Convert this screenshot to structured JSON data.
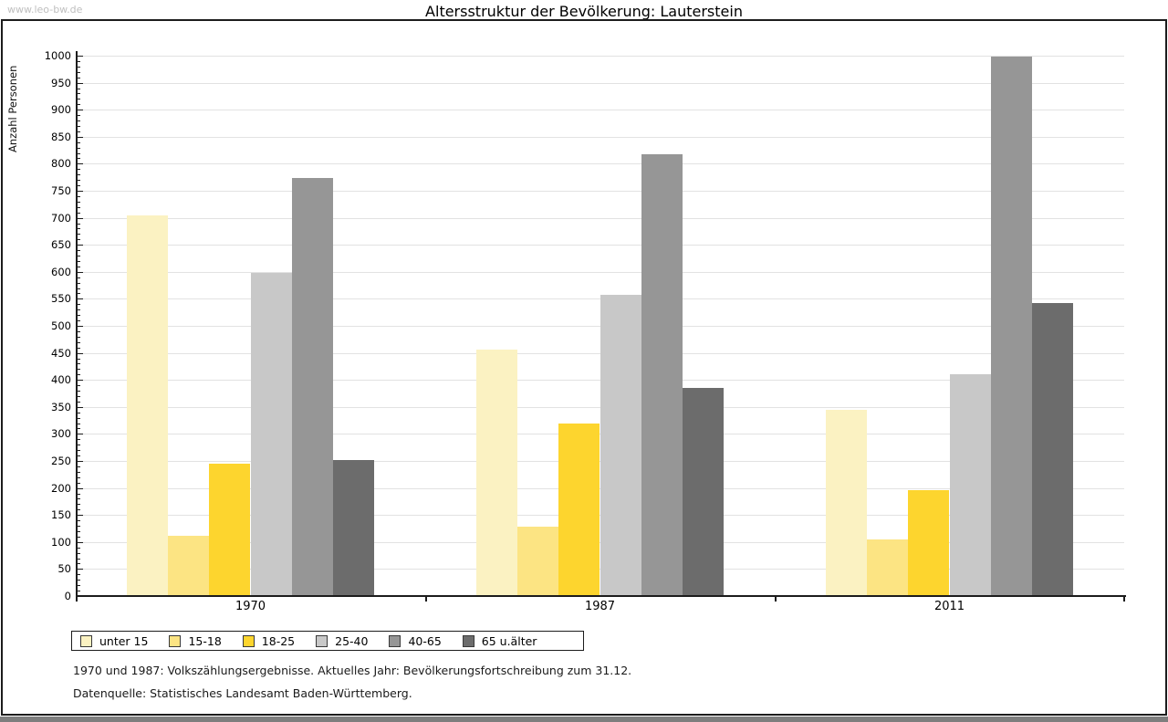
{
  "watermark": "www.leo-bw.de",
  "header": {
    "title": "Altersstruktur der Bevölkerung: Lauterstein"
  },
  "footnotes": {
    "line1": "1970 und 1987: Volkszählungsergebnisse. Aktuelles Jahr: Bevölkerungsfortschreibung zum 31.12.",
    "line2": "Datenquelle: Statistisches Landesamt Baden-Württemberg."
  },
  "colors": {
    "axis": "#1c1c1c",
    "gridline": "#e2e2e2",
    "frame": "#1c1c1c",
    "bottom_strip": "#7e7e7e",
    "watermark_text": "#bfbfbf"
  },
  "chart_data": {
    "type": "bar",
    "title": "Altersstruktur der Bevölkerung: Lauterstein",
    "ylabel": "Anzahl Personen",
    "xlabel": "",
    "categories": [
      "1970",
      "1987",
      "2011"
    ],
    "series": [
      {
        "name": "unter 15",
        "color": "#fbf2c2",
        "values": [
          704,
          456,
          345
        ]
      },
      {
        "name": "15-18",
        "color": "#fce483",
        "values": [
          111,
          128,
          105
        ]
      },
      {
        "name": "18-25",
        "color": "#fdd52e",
        "values": [
          245,
          320,
          196
        ]
      },
      {
        "name": "25-40",
        "color": "#c8c8c8",
        "values": [
          598,
          557,
          410
        ]
      },
      {
        "name": "40-65",
        "color": "#969696",
        "values": [
          773,
          817,
          998
        ]
      },
      {
        "name": "65 u.älter",
        "color": "#6c6c6c",
        "values": [
          251,
          385,
          543
        ]
      }
    ],
    "ylim": [
      0,
      1000
    ],
    "ytick_major_step": 50,
    "ytick_minor_step": 10,
    "grid": true,
    "legend_position": "bottom-left"
  }
}
